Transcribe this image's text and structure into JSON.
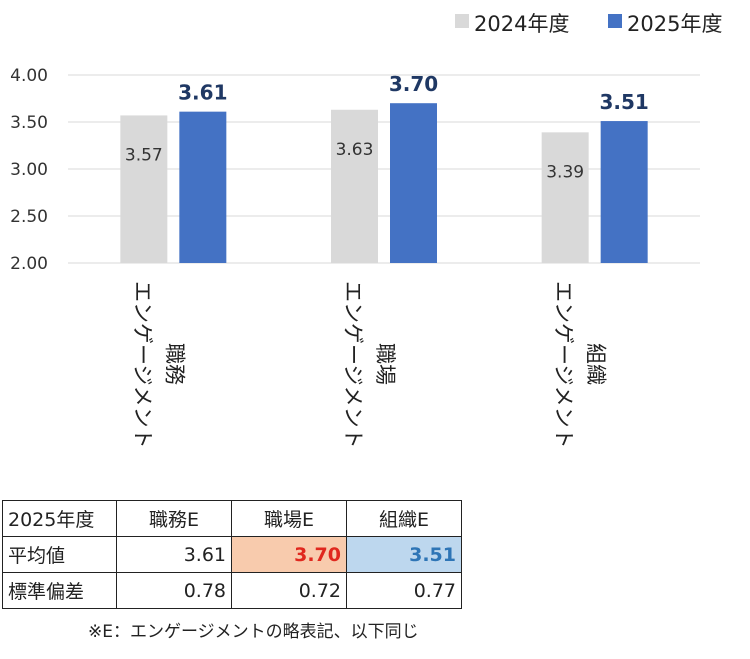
{
  "chart_data": {
    "type": "bar",
    "categories": [
      "エンゲージメント 職務",
      "エンゲージメント 職場",
      "エンゲージメント 組織"
    ],
    "category_lines": [
      [
        "エンゲージメント",
        "職務"
      ],
      [
        "エンゲージメント",
        "職場"
      ],
      [
        "エンゲージメント",
        "組織"
      ]
    ],
    "series": [
      {
        "name": "2024年度",
        "values": [
          3.57,
          3.63,
          3.39
        ],
        "color": "#d9d9d9"
      },
      {
        "name": "2025年度",
        "values": [
          3.61,
          3.7,
          3.51
        ],
        "color": "#4472c4"
      }
    ],
    "value_labels": [
      [
        "3.57",
        "3.63",
        "3.39"
      ],
      [
        "3.61",
        "3.70",
        "3.51"
      ]
    ],
    "ylim": [
      2.0,
      4.0
    ],
    "yticks": [
      "2.00",
      "2.50",
      "3.00",
      "3.50",
      "4.00"
    ],
    "grid": true,
    "legend_position": "top-right"
  },
  "table": {
    "corner": "2025年度",
    "columns": [
      "職務E",
      "職場E",
      "組織E"
    ],
    "rows": [
      {
        "label": "平均値",
        "values": [
          "3.61",
          "3.70",
          "3.51"
        ]
      },
      {
        "label": "標準偏差",
        "values": [
          "0.78",
          "0.72",
          "0.77"
        ]
      }
    ],
    "highlight_colors": {
      "red_text": "#e0281e",
      "red_bg": "#f8cbad",
      "blue_text": "#2e75b6",
      "blue_bg": "#bdd7ee"
    }
  },
  "footnote": "※E：エンゲージメントの略表記、以下同じ"
}
